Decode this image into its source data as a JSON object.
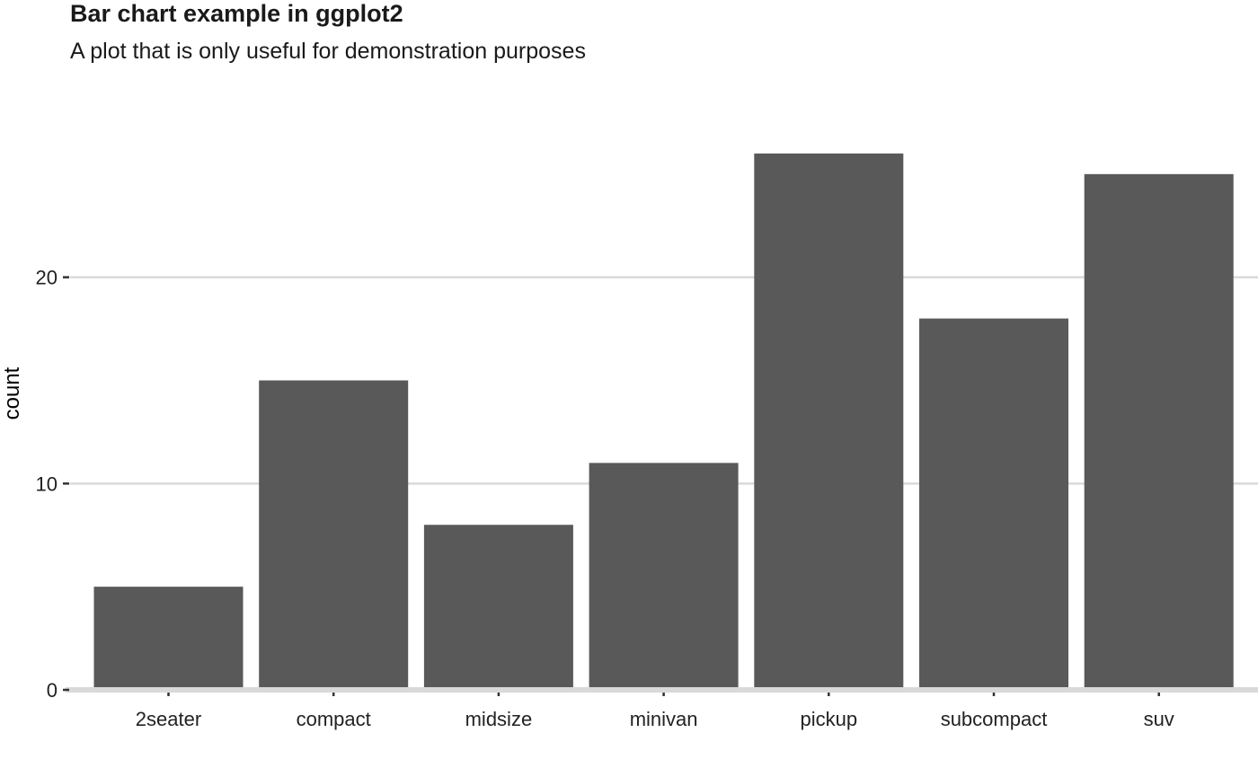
{
  "chart_data": {
    "type": "bar",
    "title": "Bar chart example in ggplot2",
    "subtitle": "A plot that is only useful for demonstration purposes",
    "xlabel": "",
    "ylabel": "count",
    "categories": [
      "2seater",
      "compact",
      "midsize",
      "minivan",
      "pickup",
      "subcompact",
      "suv"
    ],
    "values": [
      5,
      15,
      8,
      11,
      26,
      18,
      25
    ],
    "yticks": [
      0,
      10,
      20
    ],
    "ylim": [
      0,
      27.3
    ],
    "grid": "horizontal major",
    "legend": "none",
    "colors": {
      "bar": "#595959",
      "grid": "#d9d9d9",
      "baseline": "#d9d9d9",
      "text": "#1a1a1a",
      "tick": "#333333"
    }
  }
}
